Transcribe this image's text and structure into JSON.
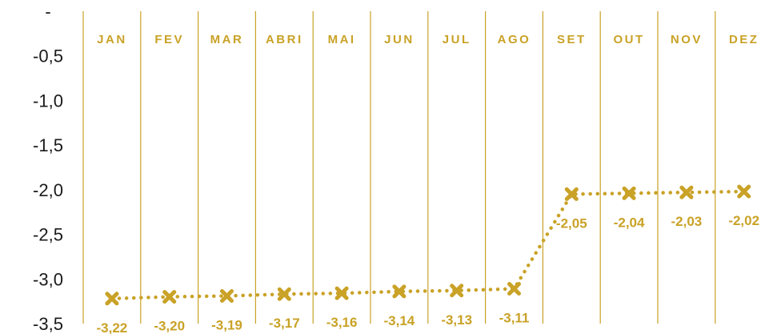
{
  "chart_data": {
    "type": "line",
    "categories": [
      "JAN",
      "FEV",
      "MAR",
      "ABRI",
      "MAI",
      "JUN",
      "JUL",
      "AGO",
      "SET",
      "OUT",
      "NOV",
      "DEZ"
    ],
    "series": [
      {
        "values": [
          -3.22,
          -3.2,
          -3.19,
          -3.17,
          -3.16,
          -3.14,
          -3.13,
          -3.11,
          -2.05,
          -2.04,
          -2.03,
          -2.02
        ],
        "data_labels": [
          "-3,22",
          "-3,20",
          "-3,19",
          "-3,17",
          "-3,16",
          "-3,14",
          "-3,13",
          "-3,11",
          "-2,05",
          "-2,04",
          "-2,03",
          "-2,02"
        ]
      }
    ],
    "y_tick_labels": [
      "-",
      "-0,5",
      "-1,0",
      "-1,5",
      "-2,0",
      "-2,5",
      "-3,0",
      "-3,5"
    ],
    "y_ticks": [
      0,
      -0.5,
      -1.0,
      -1.5,
      -2.0,
      -2.5,
      -3.0,
      -3.5
    ],
    "ylim": [
      -3.5,
      0
    ],
    "x_axis_position": "top",
    "line_style": "dotted",
    "marker": "x",
    "gridlines": "vertical",
    "legend": "none",
    "colors": {
      "series": "#C9A227",
      "gridlines": "#C9A227",
      "tick_text": "#1a1a1a"
    }
  }
}
